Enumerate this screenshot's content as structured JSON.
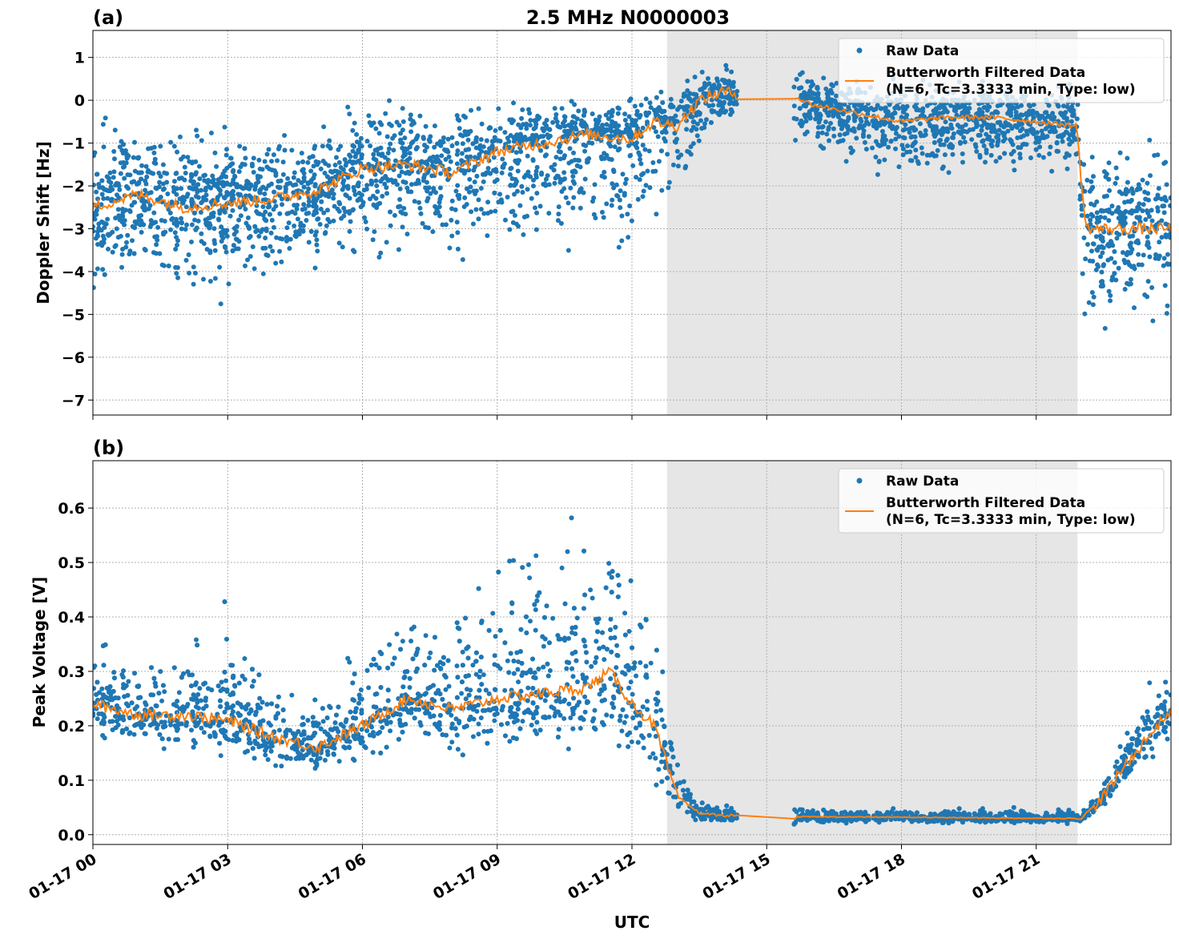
{
  "chart_data": [
    {
      "type": "scatter",
      "panel_label": "(a)",
      "title": "2.5 MHz N0000003",
      "xlabel": "",
      "ylabel": "Doppler Shift [Hz]",
      "xlim_hours": [
        0,
        24
      ],
      "ylim": [
        -7.35,
        1.63
      ],
      "yticks": [
        "1",
        "0",
        "−1",
        "−2",
        "−3",
        "−4",
        "−5",
        "−6",
        "−7"
      ],
      "ytick_values": [
        1,
        0,
        -1,
        -2,
        -3,
        -4,
        -5,
        -6,
        -7
      ],
      "grid": true,
      "legend": "top-right",
      "shaded_region_hours": [
        12.78,
        21.92
      ],
      "data_gap_hours": [
        14.35,
        15.6
      ],
      "series": [
        {
          "name": "Raw Data",
          "kind": "scatter",
          "color": "#1f77b4",
          "x_hours": [
            0,
            1,
            2,
            3,
            4,
            5,
            6,
            7,
            8,
            9,
            10,
            11,
            12,
            12.5,
            13,
            13.5,
            14,
            14.35,
            15.6,
            16,
            17,
            18,
            19,
            20,
            21,
            21.9,
            22.1,
            23,
            24
          ],
          "y_min": [
            -4.6,
            -4.8,
            -5.0,
            -4.8,
            -4.6,
            -4.4,
            -3.6,
            -3.8,
            -3.9,
            -3.8,
            -3.6,
            -3.6,
            -4.2,
            -3.0,
            -3.0,
            -1.2,
            -0.7,
            -0.6,
            -1.2,
            -1.4,
            -1.6,
            -1.9,
            -1.8,
            -1.8,
            -1.7,
            -1.6,
            -5.8,
            -5.6,
            -5.4
          ],
          "y_max": [
            0.0,
            -0.4,
            -0.3,
            -0.4,
            -0.5,
            -0.3,
            0.0,
            0.0,
            0.0,
            0.1,
            0.1,
            0.3,
            0.2,
            0.3,
            0.3,
            0.7,
            0.8,
            0.9,
            0.9,
            0.8,
            0.7,
            0.6,
            0.6,
            0.6,
            0.6,
            0.5,
            -0.6,
            -0.8,
            -0.9
          ]
        },
        {
          "name": "Butterworth Filtered Data\n(N=6, Tc=3.3333 min, Type: low)",
          "kind": "line",
          "color": "#ff7f0e",
          "x_hours": [
            0,
            1,
            2,
            3,
            4,
            5,
            6,
            7,
            8,
            9,
            10,
            11,
            12,
            12.5,
            13,
            13.5,
            14,
            14.35,
            15.6,
            16,
            17,
            18,
            19,
            20,
            21,
            21.9,
            22.1,
            23,
            24
          ],
          "y": [
            -2.5,
            -2.2,
            -2.5,
            -2.4,
            -2.3,
            -2.1,
            -1.6,
            -1.5,
            -1.7,
            -1.2,
            -1.0,
            -0.8,
            -0.9,
            -0.5,
            -0.6,
            0.0,
            0.2,
            0.15,
            0.1,
            -0.1,
            -0.3,
            -0.5,
            -0.4,
            -0.4,
            -0.5,
            -0.6,
            -3.0,
            -3.0,
            -3.0
          ]
        }
      ]
    },
    {
      "type": "scatter",
      "panel_label": "(b)",
      "xlabel": "UTC",
      "ylabel": "Peak Voltage [V]",
      "xlim_hours": [
        0,
        24
      ],
      "ylim": [
        -0.018,
        0.687
      ],
      "xticks": [
        "01-17 00",
        "01-17 03",
        "01-17 06",
        "01-17 09",
        "01-17 12",
        "01-17 15",
        "01-17 18",
        "01-17 21"
      ],
      "xtick_hours": [
        0,
        3,
        6,
        9,
        12,
        15,
        18,
        21
      ],
      "yticks": [
        "0.0",
        "0.1",
        "0.2",
        "0.3",
        "0.4",
        "0.5",
        "0.6"
      ],
      "ytick_values": [
        0,
        0.1,
        0.2,
        0.3,
        0.4,
        0.5,
        0.6
      ],
      "grid": true,
      "legend": "top-right",
      "shaded_region_hours": [
        12.78,
        21.92
      ],
      "data_gap_hours": [
        14.35,
        15.6
      ],
      "series": [
        {
          "name": "Raw Data",
          "kind": "scatter",
          "color": "#1f77b4",
          "x_hours": [
            0,
            1,
            2,
            3,
            4,
            5,
            6,
            7,
            8,
            9,
            10,
            11,
            11.5,
            12,
            12.5,
            13,
            13.5,
            14,
            14.35,
            15.6,
            18,
            21,
            22,
            22.5,
            23,
            23.5,
            24
          ],
          "y_min": [
            0.16,
            0.15,
            0.14,
            0.14,
            0.1,
            0.1,
            0.13,
            0.16,
            0.14,
            0.14,
            0.14,
            0.15,
            0.15,
            0.12,
            0.08,
            0.03,
            0.02,
            0.02,
            0.02,
            0.02,
            0.02,
            0.02,
            0.02,
            0.05,
            0.09,
            0.13,
            0.16
          ],
          "y_max": [
            0.38,
            0.33,
            0.36,
            0.45,
            0.3,
            0.28,
            0.35,
            0.46,
            0.42,
            0.55,
            0.6,
            0.62,
            0.65,
            0.5,
            0.43,
            0.15,
            0.06,
            0.06,
            0.05,
            0.05,
            0.05,
            0.05,
            0.05,
            0.1,
            0.2,
            0.28,
            0.31
          ]
        },
        {
          "name": "Butterworth Filtered Data\n(N=6, Tc=3.3333 min, Type: low)",
          "kind": "line",
          "color": "#ff7f0e",
          "x_hours": [
            0,
            1,
            2,
            3,
            4,
            5,
            6,
            7,
            8,
            9,
            10,
            11,
            11.5,
            12,
            12.5,
            13,
            13.5,
            14,
            14.35,
            15.6,
            15.65,
            18,
            21,
            22,
            22.5,
            23,
            23.5,
            24
          ],
          "y": [
            0.24,
            0.22,
            0.22,
            0.21,
            0.18,
            0.16,
            0.2,
            0.25,
            0.23,
            0.25,
            0.26,
            0.27,
            0.3,
            0.24,
            0.2,
            0.07,
            0.04,
            0.035,
            0.035,
            0.015,
            0.033,
            0.032,
            0.03,
            0.03,
            0.07,
            0.13,
            0.18,
            0.23
          ]
        }
      ]
    }
  ]
}
